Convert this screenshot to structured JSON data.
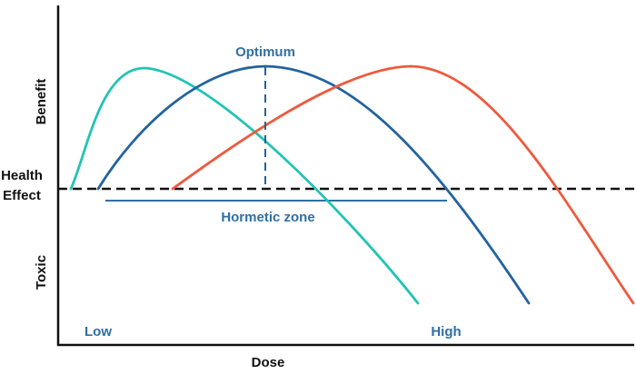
{
  "y_axis": {
    "top_label": "Benefit",
    "middle_label_line1": "Health",
    "middle_label_line2": "Effect",
    "bottom_label": "Toxic"
  },
  "x_axis": {
    "label": "Dose",
    "low_label": "Low",
    "high_label": "High"
  },
  "annotations": {
    "optimum": "Optimum",
    "hormetic_zone": "Hormetic zone"
  },
  "colors": {
    "teal_curve": "#22c4b4",
    "blue_curve": "#22639e",
    "red_curve": "#ee5a3c",
    "annotation_blue": "#2f6fa5",
    "axis": "#111111"
  },
  "curves": [
    {
      "name": "teal-curve",
      "description": "low-dose optimum"
    },
    {
      "name": "blue-curve",
      "description": "mid-dose optimum"
    },
    {
      "name": "red-curve",
      "description": "high-dose optimum"
    }
  ]
}
